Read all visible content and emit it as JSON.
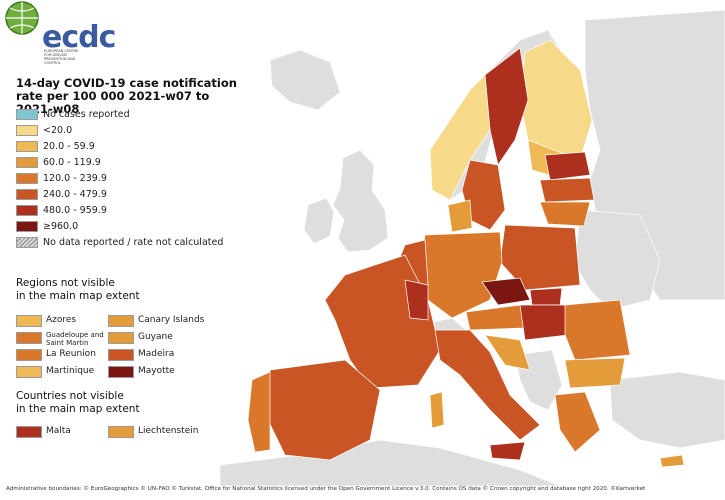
{
  "colors": {
    "sea": "#ffffff",
    "outside": "#dedede",
    "no_cases": "#7fc6cf",
    "lt20": "#f7d98a",
    "c20_59": "#efb955",
    "c60_119": "#e49b3a",
    "c120_239": "#d9772a",
    "c240_479": "#c95424",
    "c480_959": "#ad2f1d",
    "ge960": "#7b1612",
    "nodata": "#bdbdbd"
  },
  "logo": {
    "text": "ecdc",
    "subtitle": "EUROPEAN CENTRE FOR DISEASE PREVENTION AND CONTROL"
  },
  "title": {
    "line1": "14-day COVID-19 case notification",
    "line2": "rate per 100 000 2021-w07 to 2021-w08"
  },
  "legend": [
    {
      "label": "No cases reported",
      "color": "#7fc6cf"
    },
    {
      "label": "<20.0",
      "color": "#f7d98a"
    },
    {
      "label": "20.0 - 59.9",
      "color": "#efb955"
    },
    {
      "label": "60.0 - 119.9",
      "color": "#e49b3a"
    },
    {
      "label": "120.0 - 239.9",
      "color": "#d9772a"
    },
    {
      "label": "240.0 - 479.9",
      "color": "#c95424"
    },
    {
      "label": "480.0 - 959.9",
      "color": "#ad2f1d"
    },
    {
      "label": "≥960.0",
      "color": "#7b1612"
    },
    {
      "label": "No data reported / rate not calculated",
      "color": "hatch"
    }
  ],
  "regions_section": {
    "heading_line1": "Regions not visible",
    "heading_line2": "in the main map extent",
    "items": [
      {
        "label": "Azores",
        "color": "#efb955"
      },
      {
        "label": "Canary Islands",
        "color": "#e49b3a"
      },
      {
        "label": "Guadeloupe and Saint Martin",
        "color": "#d9772a"
      },
      {
        "label": "Guyane",
        "color": "#e49b3a"
      },
      {
        "label": "La Reunion",
        "color": "#d9772a"
      },
      {
        "label": "Madeira",
        "color": "#c95424"
      },
      {
        "label": "Martinique",
        "color": "#efb955"
      },
      {
        "label": "Mayotte",
        "color": "#7b1612"
      }
    ]
  },
  "countries_section": {
    "heading_line1": "Countries not visible",
    "heading_line2": "in the main map extent",
    "items": [
      {
        "label": "Malta",
        "color": "#ad2f1d"
      },
      {
        "label": "Liechtenstein",
        "color": "#e49b3a"
      }
    ]
  },
  "footer": {
    "line1": "Administrative boundaries: © EuroGeographics © UN–FAO © Turkstat. Office for National Statistics licensed under the Open Government Licence v.3.0. Contains OS data © Crown copyright and database right 2020. ©Kartverket"
  }
}
